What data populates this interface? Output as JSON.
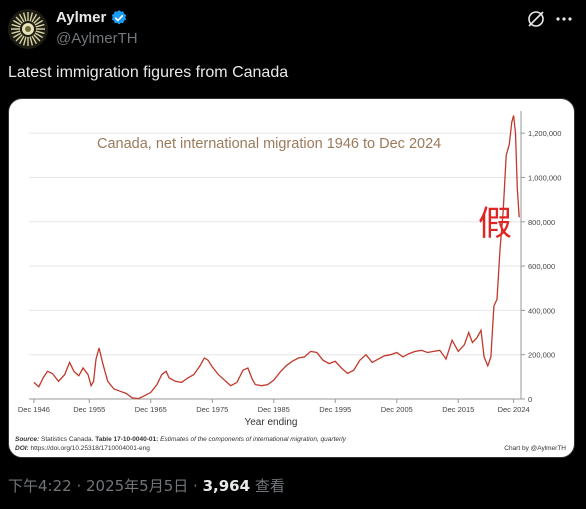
{
  "user": {
    "display_name": "Aylmer",
    "handle": "@AylmerTH"
  },
  "tweet": {
    "text": "Latest immigration figures from Canada",
    "time": "下午4:22 · 2025年5月5日",
    "separator": "·",
    "views": "3,964",
    "views_label": "查看"
  },
  "icons": {
    "verified": "verified-badge-icon",
    "grok": "grok-icon",
    "more": "more-icon"
  },
  "colors": {
    "line": "#c0392b",
    "title": "#9b7a5b",
    "verified": "#1d9bf0",
    "stamp": "#e02424"
  },
  "chart_data": {
    "type": "line",
    "title": "Canada, net international migration 1946 to Dec 2024",
    "xlabel": "Year ending",
    "ylabel": "",
    "ylim": [
      0,
      1300000
    ],
    "xlim": [
      1945.2,
      2025.2
    ],
    "x_ticks": [
      1946,
      1955,
      1965,
      1975,
      1985,
      1995,
      2005,
      2015,
      2024
    ],
    "x_tick_labels": [
      "Dec 1946",
      "Dec 1955",
      "Dec 1965",
      "Dec 1975",
      "Dec 1985",
      "Dec 1995",
      "Dec 2005",
      "Dec 2015",
      "Dec 2024"
    ],
    "y_ticks": [
      0,
      200000,
      400000,
      600000,
      800000,
      1000000,
      1200000
    ],
    "y_tick_labels": [
      "0",
      "200,000",
      "400,000",
      "600,000",
      "800,000",
      "1,000,000",
      "1,200,000"
    ],
    "grid": "horizontal",
    "overlay_text": "假",
    "source_label": "Source:",
    "source_text": "Statistics Canada.",
    "source_table": "Table 17-10-0040-01:",
    "source_desc": "Estimates of the components of international migration, quarterly",
    "doi_label": "DOI:",
    "doi_text": "https://doi.org/10.25318/1710004001-eng",
    "credit": "Chart by @AylmerTH",
    "series": [
      {
        "x": [
          1946,
          1946.8,
          1947.5,
          1948.2,
          1949,
          1950,
          1951,
          1951.8,
          1952.5,
          1953.3,
          1954,
          1954.8,
          1955.3,
          1955.7,
          1956.1,
          1956.6,
          1957.2,
          1958,
          1959,
          1960,
          1961,
          1962,
          1963,
          1964,
          1965,
          1966,
          1966.8,
          1967.5,
          1968,
          1969,
          1970,
          1971,
          1972,
          1973,
          1973.7,
          1974.3,
          1975,
          1976,
          1977,
          1978,
          1979,
          1980,
          1980.8,
          1981.5,
          1982,
          1983,
          1984,
          1985,
          1986,
          1987,
          1988,
          1989,
          1990,
          1991,
          1992,
          1993,
          1994,
          1995,
          1996,
          1997,
          1998,
          1999,
          2000,
          2001,
          2002,
          2003,
          2004,
          2005,
          2006,
          2007,
          2008,
          2009,
          2010,
          2011,
          2012,
          2013,
          2014,
          2015,
          2016,
          2016.7,
          2017.3,
          2018,
          2018.7,
          2019.2,
          2019.8,
          2020.3,
          2020.8,
          2021.3,
          2021.8,
          2022.3,
          2022.8,
          2023.3,
          2023.7,
          2024,
          2024.3,
          2024.6,
          2024.9
        ],
        "y": [
          75000,
          55000,
          95000,
          125000,
          115000,
          80000,
          110000,
          165000,
          125000,
          105000,
          140000,
          110000,
          60000,
          80000,
          180000,
          230000,
          160000,
          80000,
          45000,
          35000,
          25000,
          5000,
          2000,
          15000,
          30000,
          65000,
          110000,
          125000,
          95000,
          80000,
          75000,
          95000,
          110000,
          150000,
          185000,
          175000,
          145000,
          110000,
          85000,
          60000,
          75000,
          130000,
          140000,
          90000,
          65000,
          60000,
          65000,
          85000,
          120000,
          150000,
          170000,
          185000,
          190000,
          215000,
          210000,
          175000,
          160000,
          170000,
          140000,
          115000,
          130000,
          175000,
          200000,
          165000,
          180000,
          195000,
          200000,
          210000,
          190000,
          205000,
          215000,
          220000,
          210000,
          215000,
          220000,
          180000,
          265000,
          215000,
          245000,
          300000,
          255000,
          275000,
          310000,
          190000,
          150000,
          190000,
          420000,
          450000,
          680000,
          850000,
          1100000,
          1150000,
          1250000,
          1280000,
          1200000,
          950000,
          820000
        ]
      }
    ]
  }
}
